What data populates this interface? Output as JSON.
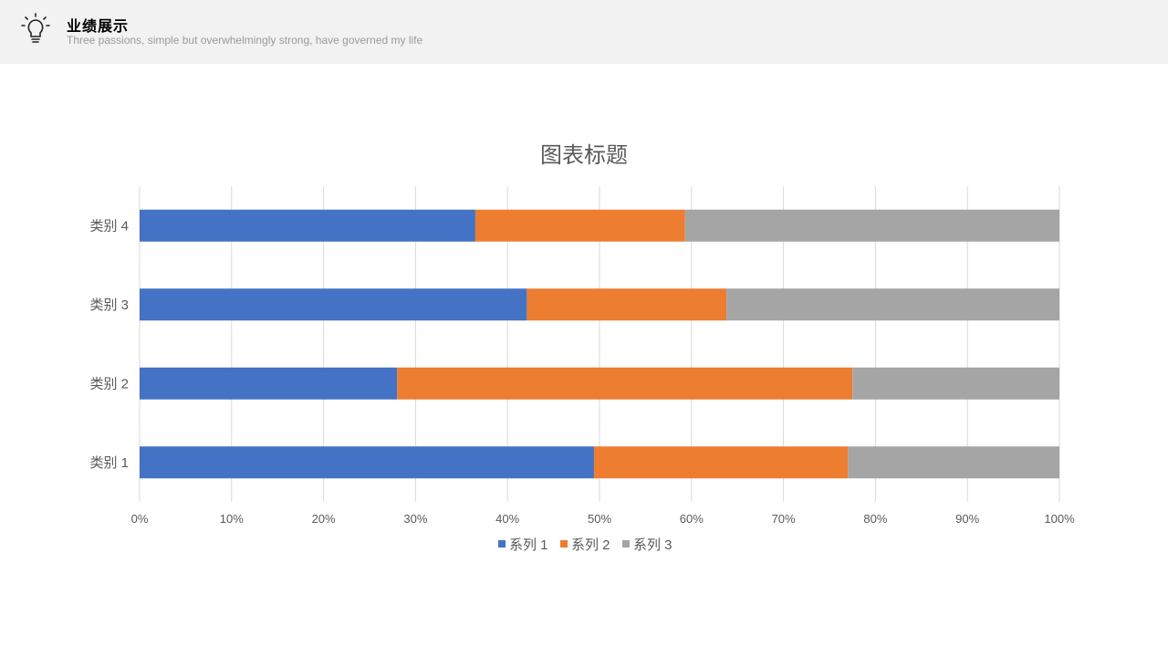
{
  "header": {
    "title": "业绩展示",
    "subtitle": "Three passions, simple but overwhelmingly strong, have governed my life"
  },
  "chart_data": {
    "type": "bar",
    "orientation": "horizontal",
    "stacking": "percent",
    "title": "图表标题",
    "categories": [
      "类别 1",
      "类别 2",
      "类别 3",
      "类别 4"
    ],
    "series": [
      {
        "name": "系列 1",
        "color": "#4472c4",
        "values": [
          49.4,
          28.0,
          42.1,
          36.5
        ]
      },
      {
        "name": "系列 2",
        "color": "#ed7d31",
        "values": [
          27.6,
          49.5,
          21.7,
          22.8
        ]
      },
      {
        "name": "系列 3",
        "color": "#a5a5a5",
        "values": [
          23.0,
          22.5,
          36.2,
          40.7
        ]
      }
    ],
    "x_ticks": [
      "0%",
      "10%",
      "20%",
      "30%",
      "40%",
      "50%",
      "60%",
      "70%",
      "80%",
      "90%",
      "100%"
    ],
    "xlim": [
      0,
      100
    ],
    "grid": true,
    "legend_position": "bottom"
  }
}
